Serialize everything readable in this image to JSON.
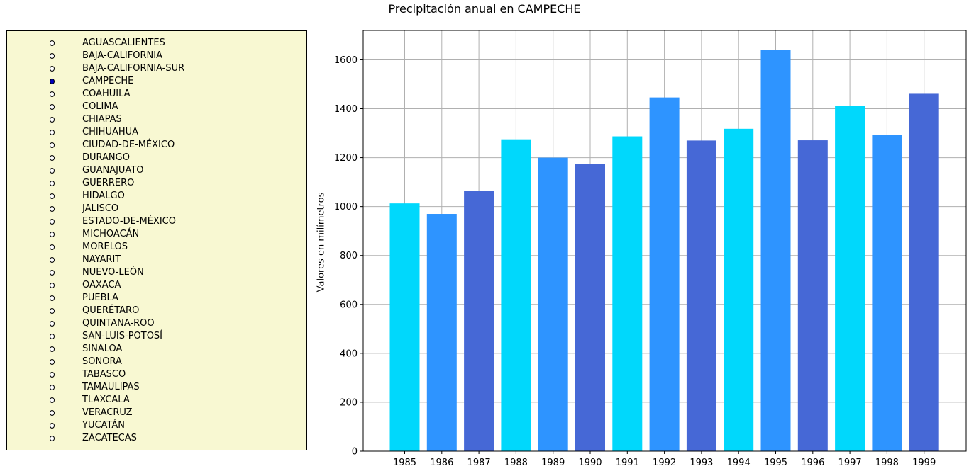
{
  "chart_data": {
    "type": "bar",
    "title": "Precipitación anual en CAMPECHE",
    "xlabel": "",
    "ylabel": "Valores en milímetros",
    "categories": [
      "1985",
      "1986",
      "1987",
      "1988",
      "1989",
      "1990",
      "1991",
      "1992",
      "1993",
      "1994",
      "1995",
      "1996",
      "1997",
      "1998",
      "1999"
    ],
    "values": [
      1013,
      970,
      1063,
      1275,
      1200,
      1173,
      1287,
      1446,
      1270,
      1318,
      1641,
      1271,
      1412,
      1293,
      1461
    ],
    "ylim": [
      0,
      1720
    ],
    "yticks": [
      0,
      200,
      400,
      600,
      800,
      1000,
      1200,
      1400,
      1600
    ],
    "grid": true,
    "bar_colors": [
      "#00d8fc",
      "#2e94ff",
      "#4668d6"
    ]
  },
  "selector": {
    "selected": "CAMPECHE",
    "options": [
      "AGUASCALIENTES",
      "BAJA-CALIFORNIA",
      "BAJA-CALIFORNIA-SUR",
      "CAMPECHE",
      "COAHUILA",
      "COLIMA",
      "CHIAPAS",
      "CHIHUAHUA",
      "CIUDAD-DE-MÉXICO",
      "DURANGO",
      "GUANAJUATO",
      "GUERRERO",
      "HIDALGO",
      "JALISCO",
      "ESTADO-DE-MÉXICO",
      "MICHOACÁN",
      "MORELOS",
      "NAYARIT",
      "NUEVO-LEÓN",
      "OAXACA",
      "PUEBLA",
      "QUERÉTARO",
      "QUINTANA-ROO",
      "SAN-LUIS-POTOSÍ",
      "SINALOA",
      "SONORA",
      "TABASCO",
      "TAMAULIPAS",
      "TLAXCALA",
      "VERACRUZ",
      "YUCATÁN",
      "ZACATECAS"
    ],
    "panel_color": "#f8f8d2",
    "selected_color": "#0000c0"
  }
}
